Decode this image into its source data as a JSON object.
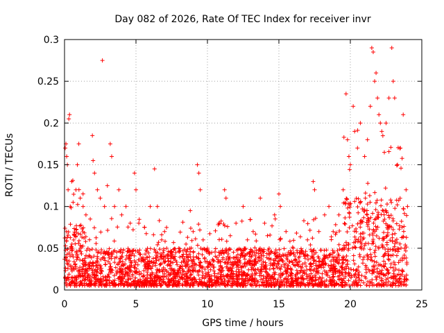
{
  "chart_data": {
    "type": "scatter",
    "title": "Day 082 of 2026, Rate Of TEC Index for receiver invr",
    "xlabel": "GPS time / hours",
    "ylabel": "ROTI / TECUs",
    "xlim": [
      0,
      25
    ],
    "ylim": [
      0,
      0.3
    ],
    "xticks": [
      0,
      5,
      10,
      15,
      20,
      25
    ],
    "xtick_labels": [
      "0",
      "5",
      "10",
      "15",
      "20",
      "25"
    ],
    "yticks": [
      0,
      0.05,
      0.1,
      0.15,
      0.2,
      0.25,
      0.3
    ],
    "ytick_labels": [
      "0",
      "0.05",
      "0.1",
      "0.15",
      "0.2",
      "0.25",
      "0.3"
    ],
    "grid": true,
    "marker": "plus",
    "color": "#ff0000",
    "series": [
      {
        "name": "ROTI",
        "points": [
          [
            0.05,
            0.17
          ],
          [
            0.1,
            0.175
          ],
          [
            0.15,
            0.16
          ],
          [
            0.2,
            0.15
          ],
          [
            0.25,
            0.12
          ],
          [
            0.3,
            0.205
          ],
          [
            0.35,
            0.21
          ],
          [
            0.4,
            0.1
          ],
          [
            0.5,
            0.13
          ],
          [
            0.6,
            0.105
          ],
          [
            0.8,
            0.12
          ],
          [
            0.9,
            0.15
          ],
          [
            1.0,
            0.175
          ],
          [
            1.1,
            0.11
          ],
          [
            1.3,
            0.1
          ],
          [
            1.5,
            0.09
          ],
          [
            1.8,
            0.085
          ],
          [
            1.95,
            0.185
          ],
          [
            2.0,
            0.155
          ],
          [
            2.1,
            0.14
          ],
          [
            2.3,
            0.12
          ],
          [
            2.5,
            0.11
          ],
          [
            2.65,
            0.275
          ],
          [
            2.8,
            0.1
          ],
          [
            3.0,
            0.125
          ],
          [
            3.2,
            0.175
          ],
          [
            3.3,
            0.16
          ],
          [
            3.5,
            0.1
          ],
          [
            3.8,
            0.12
          ],
          [
            4.0,
            0.09
          ],
          [
            4.3,
            0.1
          ],
          [
            4.6,
            0.08
          ],
          [
            4.9,
            0.14
          ],
          [
            5.0,
            0.12
          ],
          [
            5.2,
            0.08
          ],
          [
            5.6,
            0.075
          ],
          [
            6.0,
            0.1
          ],
          [
            6.3,
            0.145
          ],
          [
            6.5,
            0.1
          ],
          [
            6.8,
            0.06
          ],
          [
            7.0,
            0.07
          ],
          [
            7.5,
            0.045
          ],
          [
            8.0,
            0.05
          ],
          [
            8.5,
            0.055
          ],
          [
            8.8,
            0.095
          ],
          [
            9.0,
            0.07
          ],
          [
            9.3,
            0.15
          ],
          [
            9.4,
            0.14
          ],
          [
            9.5,
            0.12
          ],
          [
            9.7,
            0.06
          ],
          [
            10.0,
            0.05
          ],
          [
            10.3,
            0.045
          ],
          [
            10.8,
            0.08
          ],
          [
            11.2,
            0.12
          ],
          [
            11.3,
            0.11
          ],
          [
            11.6,
            0.065
          ],
          [
            12.0,
            0.08
          ],
          [
            12.5,
            0.1
          ],
          [
            12.8,
            0.06
          ],
          [
            13.2,
            0.07
          ],
          [
            13.7,
            0.11
          ],
          [
            14.0,
            0.08
          ],
          [
            14.2,
            0.065
          ],
          [
            14.7,
            0.09
          ],
          [
            15.0,
            0.115
          ],
          [
            15.1,
            0.1
          ],
          [
            15.5,
            0.07
          ],
          [
            16.0,
            0.05
          ],
          [
            16.5,
            0.045
          ],
          [
            17.0,
            0.06
          ],
          [
            17.4,
            0.13
          ],
          [
            17.5,
            0.12
          ],
          [
            17.8,
            0.07
          ],
          [
            18.2,
            0.09
          ],
          [
            18.5,
            0.1
          ],
          [
            18.8,
            0.07
          ],
          [
            19.2,
            0.09
          ],
          [
            19.5,
            0.12
          ],
          [
            19.7,
            0.235
          ],
          [
            19.8,
            0.18
          ],
          [
            19.9,
            0.16
          ],
          [
            20.0,
            0.15
          ],
          [
            20.2,
            0.22
          ],
          [
            20.3,
            0.19
          ],
          [
            20.5,
            0.17
          ],
          [
            20.7,
            0.2
          ],
          [
            21.0,
            0.16
          ],
          [
            21.2,
            0.18
          ],
          [
            21.4,
            0.22
          ],
          [
            21.5,
            0.29
          ],
          [
            21.6,
            0.285
          ],
          [
            21.7,
            0.25
          ],
          [
            21.8,
            0.26
          ],
          [
            21.9,
            0.23
          ],
          [
            22.0,
            0.21
          ],
          [
            22.1,
            0.2
          ],
          [
            22.2,
            0.19
          ],
          [
            22.5,
            0.2
          ],
          [
            22.7,
            0.23
          ],
          [
            22.9,
            0.29
          ],
          [
            23.0,
            0.25
          ],
          [
            23.1,
            0.23
          ],
          [
            23.3,
            0.15
          ],
          [
            23.5,
            0.17
          ],
          [
            23.7,
            0.21
          ],
          [
            23.9,
            0.12
          ],
          [
            24.0,
            0.1
          ]
        ],
        "background_band": {
          "description": "dense cluster of ROTI values across the full day",
          "x_range": [
            0,
            24
          ],
          "y_range": [
            0.005,
            0.05
          ],
          "point_count": 2600,
          "extra_spikes": [
            {
              "x_range": [
                0,
                1.6
              ],
              "y_max": 0.14
            },
            {
              "x_range": [
                19.5,
                24
              ],
              "y_max": 0.2
            }
          ]
        }
      }
    ]
  }
}
